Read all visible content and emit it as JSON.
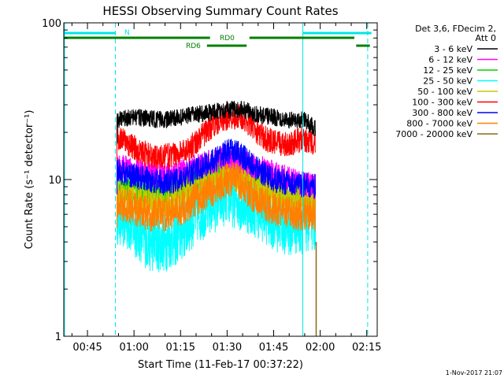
{
  "chart_data": {
    "type": "line",
    "title": "HESSI Observing Summary Count Rates",
    "xlabel": "Start Time (11-Feb-17 00:37:22)",
    "ylabel": "Count Rate (s⁻¹ detector⁻¹)",
    "yscale": "log",
    "ylim": [
      1,
      100
    ],
    "yticks": [
      {
        "value": 1,
        "label": "1"
      },
      {
        "value": 10,
        "label": "10"
      },
      {
        "value": 100,
        "label": "100"
      }
    ],
    "xlim_minutes": [
      37.37,
      138.37
    ],
    "xticks": [
      {
        "minute": 45,
        "label": "00:45"
      },
      {
        "minute": 60,
        "label": "01:00"
      },
      {
        "minute": 75,
        "label": "01:15"
      },
      {
        "minute": 90,
        "label": "01:30"
      },
      {
        "minute": 105,
        "label": "01:45"
      },
      {
        "minute": 120,
        "label": "02:00"
      },
      {
        "minute": 135,
        "label": "02:15"
      }
    ],
    "grid": false,
    "legend_title": [
      "Det 3,6, FDecim 2,",
      "Att 0"
    ],
    "legend_position": "right",
    "data_window_minutes": [
      54.5,
      118.5
    ],
    "series": [
      {
        "name": "3 - 6 keV",
        "color": "#000000",
        "points": [
          [
            54.5,
            24
          ],
          [
            60,
            25
          ],
          [
            70,
            24
          ],
          [
            80,
            26
          ],
          [
            85,
            27
          ],
          [
            90,
            28
          ],
          [
            95,
            28
          ],
          [
            100,
            26
          ],
          [
            105,
            25
          ],
          [
            110,
            24
          ],
          [
            115,
            24
          ],
          [
            118.5,
            21
          ]
        ]
      },
      {
        "name": "6 - 12 keV",
        "color": "#ff00ff",
        "points": [
          [
            54.5,
            12
          ],
          [
            60,
            11.5
          ],
          [
            70,
            10.5
          ],
          [
            80,
            12
          ],
          [
            90,
            14
          ],
          [
            100,
            12
          ],
          [
            110,
            10
          ],
          [
            118.5,
            9
          ]
        ]
      },
      {
        "name": "12 - 25 keV",
        "color": "#00d000",
        "points": [
          [
            54.5,
            9
          ],
          [
            60,
            8.5
          ],
          [
            70,
            8
          ],
          [
            80,
            10
          ],
          [
            90,
            12
          ],
          [
            100,
            10
          ],
          [
            110,
            8.5
          ],
          [
            118.5,
            8
          ]
        ]
      },
      {
        "name": "25 - 50 keV",
        "color": "#00ffff",
        "points": [
          [
            54.5,
            6
          ],
          [
            60,
            5
          ],
          [
            65,
            4
          ],
          [
            70,
            4
          ],
          [
            75,
            4.5
          ],
          [
            80,
            6
          ],
          [
            90,
            8
          ],
          [
            100,
            6.5
          ],
          [
            105,
            5.5
          ],
          [
            110,
            5
          ],
          [
            118.5,
            5.5
          ]
        ]
      },
      {
        "name": "50 - 100 keV",
        "color": "#c8c800",
        "points": [
          [
            54.5,
            8
          ],
          [
            60,
            7.5
          ],
          [
            70,
            7
          ],
          [
            80,
            9
          ],
          [
            90,
            11
          ],
          [
            100,
            9
          ],
          [
            110,
            7.5
          ],
          [
            118.5,
            7
          ]
        ]
      },
      {
        "name": "100 - 300 keV",
        "color": "#ff0000",
        "points": [
          [
            54.5,
            19
          ],
          [
            58,
            17
          ],
          [
            62,
            15
          ],
          [
            66,
            14
          ],
          [
            70,
            14
          ],
          [
            74,
            14.5
          ],
          [
            78,
            16
          ],
          [
            82,
            19
          ],
          [
            86,
            23
          ],
          [
            90,
            25
          ],
          [
            94,
            25
          ],
          [
            97,
            23
          ],
          [
            100,
            20
          ],
          [
            103,
            18
          ],
          [
            106,
            17
          ],
          [
            110,
            17
          ],
          [
            114,
            18
          ],
          [
            118.5,
            17
          ]
        ]
      },
      {
        "name": "300 - 800 keV",
        "color": "#0000ff",
        "points": [
          [
            54.5,
            11.5
          ],
          [
            60,
            10.5
          ],
          [
            65,
            10
          ],
          [
            70,
            9.5
          ],
          [
            75,
            10
          ],
          [
            80,
            11.5
          ],
          [
            85,
            13
          ],
          [
            90,
            15
          ],
          [
            93,
            15
          ],
          [
            97,
            13
          ],
          [
            100,
            11.5
          ],
          [
            105,
            10
          ],
          [
            110,
            9.5
          ],
          [
            118.5,
            9
          ]
        ]
      },
      {
        "name": "800 - 7000 keV",
        "color": "#ff8000",
        "points": [
          [
            54.5,
            7
          ],
          [
            60,
            6.5
          ],
          [
            65,
            6
          ],
          [
            70,
            6
          ],
          [
            75,
            6.5
          ],
          [
            80,
            7.5
          ],
          [
            85,
            8.5
          ],
          [
            90,
            10
          ],
          [
            93,
            10
          ],
          [
            97,
            8.5
          ],
          [
            100,
            7.5
          ],
          [
            105,
            6.5
          ],
          [
            110,
            6
          ],
          [
            118.5,
            6
          ]
        ]
      },
      {
        "name": "7000 - 20000 keV",
        "color": "#8b6914",
        "points": []
      }
    ],
    "annotations": [
      {
        "text": "N",
        "color": "#00e5e5"
      },
      {
        "text": "RD0",
        "color": "#008000"
      },
      {
        "text": "RD6",
        "color": "#008000"
      }
    ],
    "footer": "1-Nov-2017 21:07"
  }
}
